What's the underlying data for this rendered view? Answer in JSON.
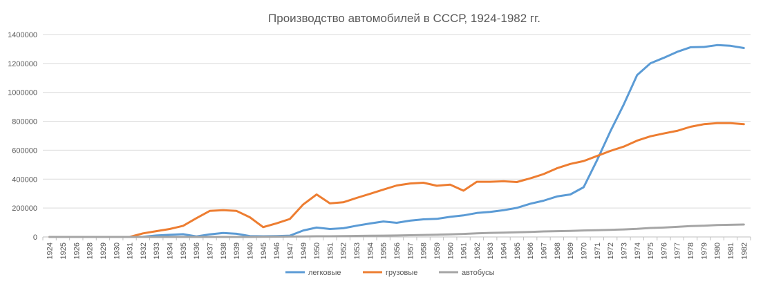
{
  "chart_data": {
    "type": "line",
    "title": "Производство автомобилей в СССР, 1924-1982 гг.",
    "xlabel": "",
    "ylabel": "",
    "ylim": [
      0,
      1400000
    ],
    "yticks": [
      0,
      200000,
      400000,
      600000,
      800000,
      1000000,
      1200000,
      1400000
    ],
    "grid": true,
    "legend_position": "bottom",
    "categories": [
      "1924",
      "1925",
      "1926",
      "1928",
      "1929",
      "1930",
      "1931",
      "1932",
      "1933",
      "1934",
      "1935",
      "1936",
      "1937",
      "1938",
      "1939",
      "1940",
      "1945",
      "1946",
      "1947",
      "1949",
      "1950",
      "1951",
      "1952",
      "1953",
      "1954",
      "1955",
      "1956",
      "1957",
      "1958",
      "1959",
      "1960",
      "1961",
      "1962",
      "1963",
      "1964",
      "1965",
      "1966",
      "1967",
      "1968",
      "1969",
      "1970",
      "1971",
      "1972",
      "1973",
      "1974",
      "1975",
      "1976",
      "1977",
      "1978",
      "1979",
      "1980",
      "1981",
      "1982"
    ],
    "series": [
      {
        "name": "легковые",
        "color": "#5b9bd5",
        "values": [
          0,
          0,
          0,
          0,
          0,
          0,
          0,
          1000,
          10000,
          15000,
          19000,
          4000,
          18000,
          27000,
          22000,
          6000,
          5000,
          6000,
          9000,
          45000,
          65000,
          55000,
          60000,
          78000,
          93000,
          107000,
          98000,
          113000,
          122000,
          125000,
          139000,
          149000,
          166000,
          173000,
          185000,
          201000,
          230000,
          251000,
          280000,
          294000,
          344000,
          530000,
          730000,
          916000,
          1119000,
          1201000,
          1239000,
          1280000,
          1312000,
          1314000,
          1327000,
          1322000,
          1307000
        ]
      },
      {
        "name": "грузовые",
        "color": "#ed7d31",
        "values": [
          0,
          0,
          0,
          0,
          0,
          0,
          0,
          25000,
          40000,
          55000,
          77000,
          130000,
          180000,
          185000,
          180000,
          136000,
          68000,
          94000,
          124000,
          225000,
          294000,
          232000,
          240000,
          270000,
          298000,
          328000,
          356000,
          370000,
          375000,
          354000,
          362000,
          320000,
          382000,
          382000,
          385000,
          380000,
          405000,
          435000,
          475000,
          505000,
          525000,
          560000,
          595000,
          625000,
          666000,
          696000,
          716000,
          734000,
          762000,
          780000,
          787000,
          787000,
          780000
        ]
      },
      {
        "name": "автобусы",
        "color": "#a5a5a5",
        "values": [
          0,
          0,
          0,
          0,
          0,
          0,
          0,
          0,
          0,
          0,
          0,
          0,
          0,
          0,
          0,
          0,
          1000,
          2000,
          3000,
          4000,
          5000,
          5000,
          6000,
          7000,
          8000,
          9000,
          10000,
          12000,
          14000,
          16000,
          18000,
          21000,
          25000,
          28000,
          30000,
          32000,
          35000,
          38000,
          40000,
          42000,
          45000,
          47000,
          49000,
          52000,
          56000,
          62000,
          65000,
          70000,
          75000,
          78000,
          82000,
          84000,
          86000
        ]
      }
    ]
  }
}
